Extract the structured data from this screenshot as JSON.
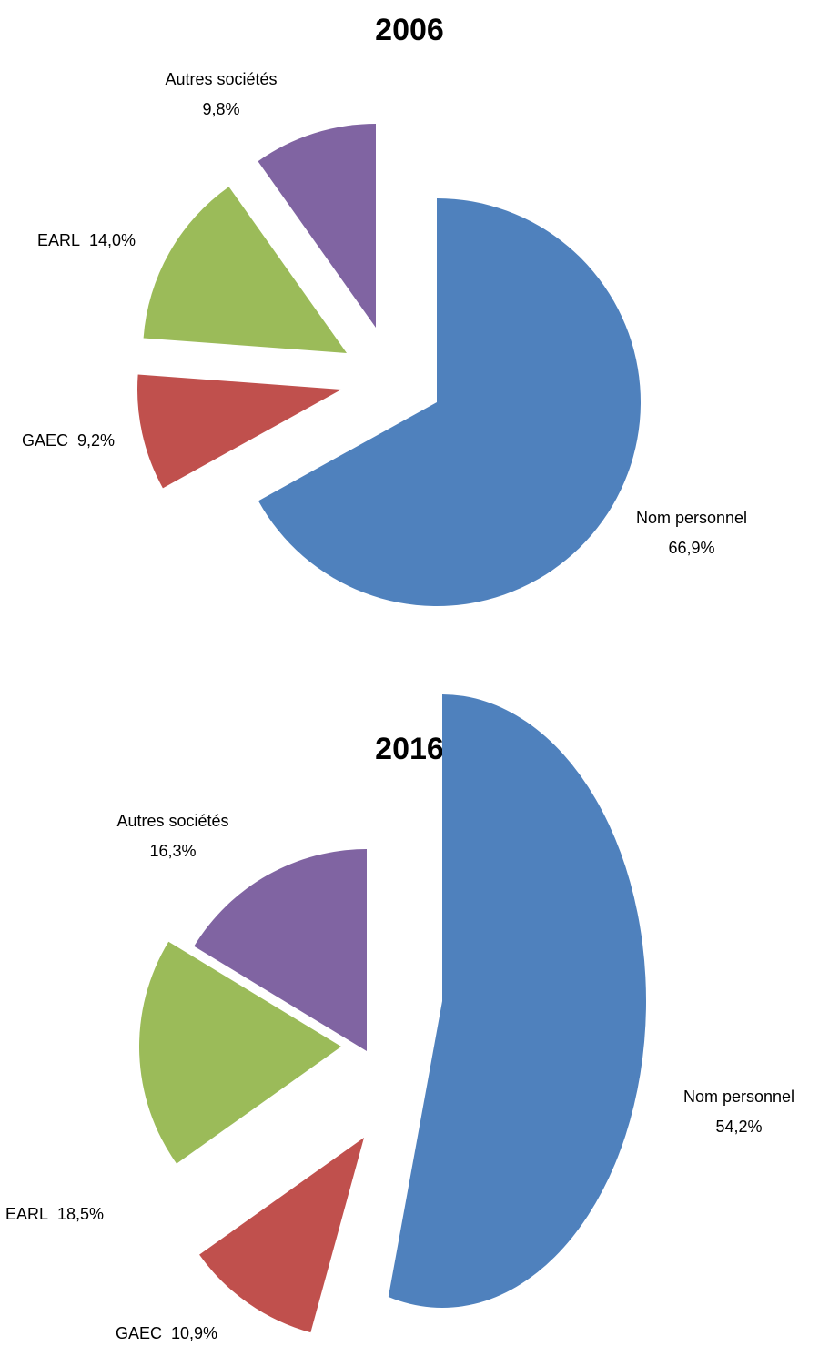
{
  "chart_data": [
    {
      "type": "pie",
      "title": "2006",
      "categories": [
        "Nom personnel",
        "GAEC",
        "EARL",
        "Autres sociétés"
      ],
      "values": [
        66.9,
        9.2,
        14.0,
        9.8
      ],
      "value_labels": [
        "66,9%",
        "9,2%",
        "14,0%",
        "9,8%"
      ],
      "colors": [
        "#4f81bd",
        "#c0504d",
        "#9bbb59",
        "#8064a2"
      ]
    },
    {
      "type": "pie",
      "title": "2016",
      "categories": [
        "Nom personnel",
        "GAEC",
        "EARL",
        "Autres sociétés"
      ],
      "values": [
        54.2,
        10.9,
        18.5,
        16.3
      ],
      "value_labels": [
        "54,2%",
        "10,9%",
        "18,5%",
        "16,3%"
      ],
      "colors": [
        "#4f81bd",
        "#c0504d",
        "#9bbb59",
        "#8064a2"
      ]
    }
  ]
}
